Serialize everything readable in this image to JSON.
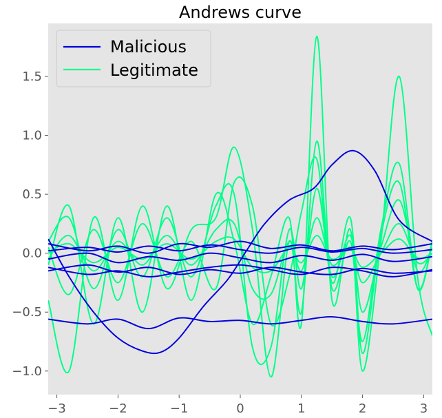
{
  "chart_data": {
    "type": "line",
    "title": "Andrews curve",
    "xlabel": "",
    "ylabel": "",
    "xlim": [
      -3.14159,
      3.14159
    ],
    "ylim": [
      -1.2,
      1.95
    ],
    "x_ticks": [
      -3,
      -2,
      -1,
      0,
      1,
      2,
      3
    ],
    "x_tick_labels": [
      "−3",
      "−2",
      "−1",
      "0",
      "1",
      "2",
      "3"
    ],
    "y_ticks": [
      -1.0,
      -0.5,
      0.0,
      0.5,
      1.0,
      1.5
    ],
    "y_tick_labels": [
      "−1.0",
      "−0.5",
      "0.0",
      "0.5",
      "1.0",
      "1.5"
    ],
    "grid": false,
    "background": "#e5e5e5",
    "legend_position": "top-left",
    "series": [
      {
        "name": "Malicious",
        "color": "#0000dd",
        "lines": [
          {
            "x": [
              -3.14,
              -2.5,
              -2.0,
              -1.5,
              -1.0,
              -0.5,
              0.0,
              0.5,
              1.0,
              1.5,
              2.0,
              2.5,
              3.14
            ],
            "y": [
              -0.56,
              -0.6,
              -0.56,
              -0.64,
              -0.55,
              -0.58,
              -0.57,
              -0.6,
              -0.57,
              -0.54,
              -0.58,
              -0.6,
              -0.56
            ]
          },
          {
            "x": [
              -3.14,
              -2.8,
              -2.4,
              -2.0,
              -1.6,
              -1.3,
              -1.0,
              -0.6,
              -0.2,
              0.1,
              0.4,
              0.8,
              1.2,
              1.5,
              1.85,
              2.2,
              2.6,
              3.14
            ],
            "y": [
              0.12,
              -0.2,
              -0.5,
              -0.72,
              -0.83,
              -0.84,
              -0.72,
              -0.45,
              -0.22,
              0.02,
              0.25,
              0.45,
              0.55,
              0.75,
              0.87,
              0.7,
              0.28,
              0.1
            ]
          },
          {
            "x": [
              -3.14,
              -2.5,
              -2.0,
              -1.5,
              -1.0,
              -0.5,
              0.0,
              0.5,
              1.0,
              1.5,
              2.0,
              2.5,
              3.14
            ],
            "y": [
              -0.12,
              -0.18,
              -0.15,
              -0.2,
              -0.16,
              -0.12,
              -0.1,
              -0.14,
              -0.18,
              -0.12,
              -0.15,
              -0.2,
              -0.14
            ]
          },
          {
            "x": [
              -3.14,
              -2.5,
              -2.0,
              -1.5,
              -1.0,
              -0.5,
              0.0,
              0.5,
              1.0,
              1.5,
              2.0,
              2.5,
              3.14
            ],
            "y": [
              0.08,
              0.02,
              0.06,
              0.0,
              0.08,
              0.05,
              0.1,
              0.04,
              0.07,
              0.02,
              0.06,
              0.03,
              0.08
            ]
          },
          {
            "x": [
              -3.14,
              -2.5,
              -2.0,
              -1.5,
              -1.0,
              -0.5,
              0.0,
              0.5,
              1.0,
              1.5,
              2.0,
              2.5,
              3.14
            ],
            "y": [
              -0.05,
              0.0,
              -0.08,
              -0.03,
              -0.06,
              0.0,
              -0.04,
              -0.08,
              -0.02,
              -0.06,
              -0.01,
              -0.07,
              -0.03
            ]
          },
          {
            "x": [
              -3.14,
              -2.5,
              -2.0,
              -1.5,
              -1.0,
              -0.5,
              0.0,
              0.5,
              1.0,
              1.5,
              2.0,
              2.5,
              3.14
            ],
            "y": [
              0.02,
              0.05,
              0.01,
              0.06,
              0.02,
              0.07,
              0.03,
              0.0,
              0.05,
              0.01,
              0.04,
              0.0,
              0.03
            ]
          },
          {
            "x": [
              -3.14,
              -2.5,
              -2.0,
              -1.5,
              -1.0,
              -0.5,
              0.0,
              0.5,
              1.0,
              1.5,
              2.0,
              2.5,
              3.14
            ],
            "y": [
              -0.15,
              -0.1,
              -0.16,
              -0.12,
              -0.18,
              -0.14,
              -0.17,
              -0.12,
              -0.16,
              -0.18,
              -0.13,
              -0.17,
              -0.15
            ]
          }
        ]
      },
      {
        "name": "Legitimate",
        "color": "#00ff88",
        "lines": [
          {
            "x": [
              -3.14,
              -2.8,
              -2.4,
              -2.0,
              -1.6,
              -1.2,
              -0.8,
              -0.4,
              -0.1,
              0.2,
              0.5,
              0.8,
              1.0,
              1.25,
              1.5,
              1.8,
              2.0,
              2.3,
              2.6,
              2.9,
              3.14
            ],
            "y": [
              -0.1,
              0.4,
              -0.6,
              0.3,
              -0.5,
              0.4,
              -0.4,
              0.5,
              0.1,
              -0.6,
              -0.2,
              0.3,
              -0.6,
              1.84,
              -0.4,
              0.2,
              -1.0,
              0.1,
              1.5,
              -0.2,
              -0.7
            ]
          },
          {
            "x": [
              -3.14,
              -2.8,
              -2.4,
              -2.0,
              -1.6,
              -1.2,
              -0.8,
              -0.4,
              -0.1,
              0.2,
              0.5,
              0.8,
              1.0,
              1.25,
              1.5,
              1.8,
              2.0,
              2.3,
              2.6,
              2.9,
              3.14
            ],
            "y": [
              -0.4,
              -1.0,
              0.3,
              -0.4,
              0.4,
              -0.3,
              0.2,
              0.3,
              0.9,
              0.2,
              -1.05,
              0.1,
              -0.5,
              0.95,
              -0.3,
              0.1,
              -0.75,
              0.2,
              0.76,
              -0.3,
              0.1
            ]
          },
          {
            "x": [
              -3.14,
              -2.8,
              -2.4,
              -2.0,
              -1.6,
              -1.2,
              -0.8,
              -0.4,
              -0.1,
              0.2,
              0.5,
              0.8,
              1.0,
              1.25,
              1.5,
              1.8,
              2.0,
              2.3,
              2.6,
              2.9,
              3.14
            ],
            "y": [
              0.1,
              0.3,
              -0.3,
              0.2,
              -0.2,
              0.3,
              -0.2,
              0.4,
              0.5,
              -0.8,
              -0.8,
              0.2,
              -0.3,
              0.55,
              -0.2,
              0.15,
              -0.5,
              0.05,
              0.45,
              -0.15,
              0.05
            ]
          },
          {
            "x": [
              -3.14,
              -2.8,
              -2.4,
              -2.0,
              -1.6,
              -1.2,
              -0.8,
              -0.4,
              -0.1,
              0.2,
              0.5,
              0.8,
              1.0,
              1.25,
              1.5,
              1.8,
              2.0,
              2.3,
              2.6,
              2.9,
              3.14
            ],
            "y": [
              -0.05,
              0.15,
              -0.15,
              0.1,
              -0.1,
              0.15,
              -0.1,
              0.2,
              0.25,
              -0.3,
              -0.35,
              0.1,
              -0.15,
              0.3,
              -0.1,
              0.05,
              -0.25,
              0.0,
              0.25,
              -0.08,
              0.0
            ]
          },
          {
            "x": [
              -3.14,
              -2.8,
              -2.4,
              -2.0,
              -1.6,
              -1.2,
              -0.8,
              -0.4,
              -0.1,
              0.2,
              0.5,
              0.8,
              1.0,
              1.25,
              1.5,
              1.8,
              2.0,
              2.3,
              2.6,
              2.9,
              3.14
            ],
            "y": [
              0.05,
              -0.35,
              0.2,
              -0.25,
              0.25,
              -0.2,
              0.1,
              -0.3,
              0.6,
              0.4,
              -0.6,
              -0.2,
              0.35,
              0.8,
              -0.25,
              0.3,
              -0.85,
              0.15,
              0.6,
              -0.3,
              0.1
            ]
          },
          {
            "x": [
              -3.14,
              -2.8,
              -2.4,
              -2.0,
              -1.6,
              -1.2,
              -0.8,
              -0.4,
              -0.1,
              0.2,
              0.5,
              0.8,
              1.0,
              1.25,
              1.5,
              1.8,
              2.0,
              2.3,
              2.6,
              2.9,
              3.14
            ],
            "y": [
              0.0,
              0.08,
              -0.08,
              0.05,
              -0.05,
              0.08,
              -0.05,
              0.1,
              0.12,
              -0.12,
              -0.15,
              0.05,
              -0.08,
              0.15,
              -0.05,
              0.03,
              -0.12,
              0.0,
              0.12,
              -0.04,
              0.0
            ]
          }
        ]
      }
    ]
  }
}
